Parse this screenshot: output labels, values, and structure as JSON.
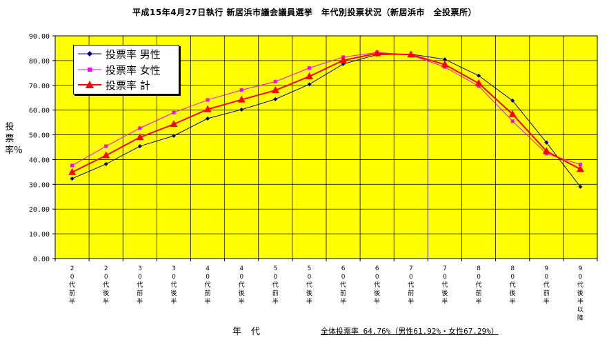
{
  "title": "平成15年4月27日執行 新居浜市議会議員選挙　年代別投票状況（新居浜市　全投票所）",
  "ylabel": "投票率％",
  "xlabel": "年代",
  "summary": "全体投票率 64.76%（男性61.92%・女性67.29%）",
  "colors": {
    "plot_bg": "#ffff00",
    "grid": "#000000",
    "male": "#000080",
    "female": "#ff00ff",
    "total": "#ff0000"
  },
  "chart_data": {
    "type": "line",
    "title": "平成15年4月27日執行 新居浜市議会議員選挙　年代別投票状況（新居浜市　全投票所）",
    "xlabel": "年代",
    "ylabel": "投票率％",
    "ylim": [
      0,
      90
    ],
    "yticks": [
      "0.00",
      "10.00",
      "20.00",
      "30.00",
      "40.00",
      "50.00",
      "60.00",
      "70.00",
      "80.00",
      "90.00"
    ],
    "grid": true,
    "legend_position": "top-left",
    "categories": [
      "20代前半",
      "20代後半",
      "30代前半",
      "30代後半",
      "40代前半",
      "40代後半",
      "50代前半",
      "50代後半",
      "60代前半",
      "60代後半",
      "70代前半",
      "70代後半",
      "80代前半",
      "80代後半",
      "90代前半",
      "90代後半以降"
    ],
    "series": [
      {
        "name": "投票率 男性",
        "color": "#000080",
        "marker": "diamond",
        "values": [
          32.3,
          38.2,
          45.4,
          49.6,
          56.6,
          60.2,
          64.4,
          70.4,
          78.6,
          82.4,
          82.6,
          80.5,
          73.9,
          63.8,
          46.9,
          29.0
        ]
      },
      {
        "name": "投票率 女性",
        "color": "#ff00ff",
        "marker": "square",
        "values": [
          37.6,
          45.4,
          52.7,
          59.0,
          64.1,
          68.1,
          71.5,
          77.0,
          81.4,
          83.3,
          82.2,
          77.4,
          69.7,
          55.5,
          42.4,
          38.0
        ]
      },
      {
        "name": "投票率 計",
        "color": "#ff0000",
        "marker": "triangle",
        "values": [
          34.9,
          41.7,
          49.0,
          54.3,
          60.3,
          64.2,
          68.0,
          73.6,
          80.1,
          82.9,
          82.4,
          78.4,
          70.8,
          58.3,
          43.4,
          36.1
        ]
      }
    ]
  }
}
